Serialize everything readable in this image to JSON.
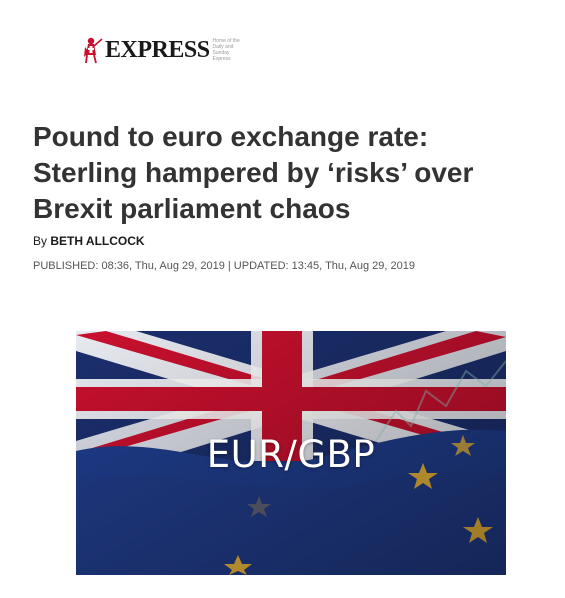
{
  "masthead": {
    "brand": "EXPRESS",
    "tagline": "Home of the Daily and Sunday Express",
    "logo_icon": "crusader-knight-icon"
  },
  "article": {
    "headline": "Pound to euro exchange rate: Sterling hampered by ‘risks’ over Brexit parliament chaos",
    "byline_prefix": "By",
    "author": "BETH ALLCOCK",
    "dates": "PUBLISHED: 08:36, Thu, Aug 29, 2019 | UPDATED: 13:45, Thu, Aug 29, 2019"
  },
  "hero_image": {
    "caption": "EUR/GBP",
    "depicts": [
      "union-jack-flag",
      "eu-flag"
    ],
    "colors": {
      "union_red": "#c8102e",
      "union_blue": "#1b2f6e",
      "eu_blue": "#1f3d8c",
      "eu_star": "#e8b43a"
    }
  }
}
